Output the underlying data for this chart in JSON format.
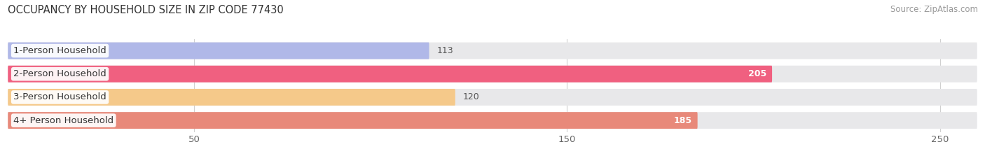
{
  "title": "OCCUPANCY BY HOUSEHOLD SIZE IN ZIP CODE 77430",
  "source": "Source: ZipAtlas.com",
  "categories": [
    "1-Person Household",
    "2-Person Household",
    "3-Person Household",
    "4+ Person Household"
  ],
  "values": [
    113,
    205,
    120,
    185
  ],
  "bar_colors": [
    "#b0b8e8",
    "#f06080",
    "#f5c98a",
    "#e8897a"
  ],
  "label_colors": [
    "#555555",
    "#ffffff",
    "#555555",
    "#ffffff"
  ],
  "background_color": "#ffffff",
  "bar_bg_color": "#e8e8ea",
  "xlim": [
    0,
    260
  ],
  "xticks": [
    50,
    150,
    250
  ],
  "bar_height": 0.72,
  "title_fontsize": 10.5,
  "label_fontsize": 9.5,
  "value_fontsize": 9,
  "source_fontsize": 8.5,
  "grid_color": "#d0d0d0"
}
